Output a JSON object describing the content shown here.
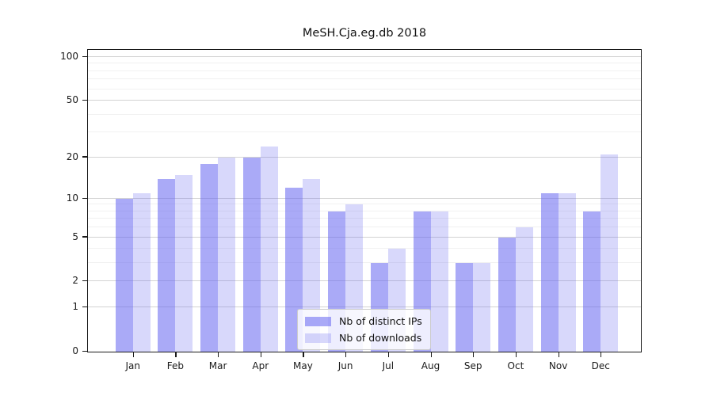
{
  "chart_data": {
    "type": "bar",
    "title": "MeSH.Cja.eg.db 2018",
    "scale": "log1p",
    "ylim": [
      0,
      112
    ],
    "grid": "on",
    "legend_position": "lower center (inside plot)",
    "categories": [
      {
        "month": "Jan",
        "year": "2018"
      },
      {
        "month": "Feb",
        "year": "2018"
      },
      {
        "month": "Mar",
        "year": "2018"
      },
      {
        "month": "Apr",
        "year": "2018"
      },
      {
        "month": "May",
        "year": "2018"
      },
      {
        "month": "Jun",
        "year": "2018"
      },
      {
        "month": "Jul",
        "year": "2018"
      },
      {
        "month": "Aug",
        "year": "2018"
      },
      {
        "month": "Sep",
        "year": "2018"
      },
      {
        "month": "Oct",
        "year": "2018"
      },
      {
        "month": "Nov",
        "year": "2018"
      },
      {
        "month": "Dec",
        "year": "2018"
      }
    ],
    "series": [
      {
        "name": "Nb of distinct IPs",
        "key": "ips",
        "values": [
          10,
          14,
          18,
          20,
          12,
          8,
          3,
          8,
          3,
          5,
          11,
          8
        ],
        "color_base": "#6464f0",
        "alpha": 0.55
      },
      {
        "name": "Nb of downloads",
        "key": "downloads",
        "values": [
          11,
          15,
          20,
          24,
          14,
          9,
          4,
          8,
          3,
          6,
          11,
          21
        ],
        "color_base": "#6464f0",
        "alpha": 0.25
      }
    ],
    "y_ticks": [
      0,
      1,
      2,
      5,
      10,
      20,
      50,
      100
    ],
    "y_minor_gridlines": [
      3,
      4,
      6,
      7,
      8,
      9,
      30,
      40,
      60,
      70,
      80,
      90
    ]
  },
  "colors": {
    "background": "#ffffff",
    "spine": "#1a1a1a",
    "grid_major": "#d3d3d3",
    "grid_minor": "#f1f1f1",
    "bar_ips_rendered": "#aaaaf7",
    "bar_downloads_rendered": "#dcdcfa"
  }
}
